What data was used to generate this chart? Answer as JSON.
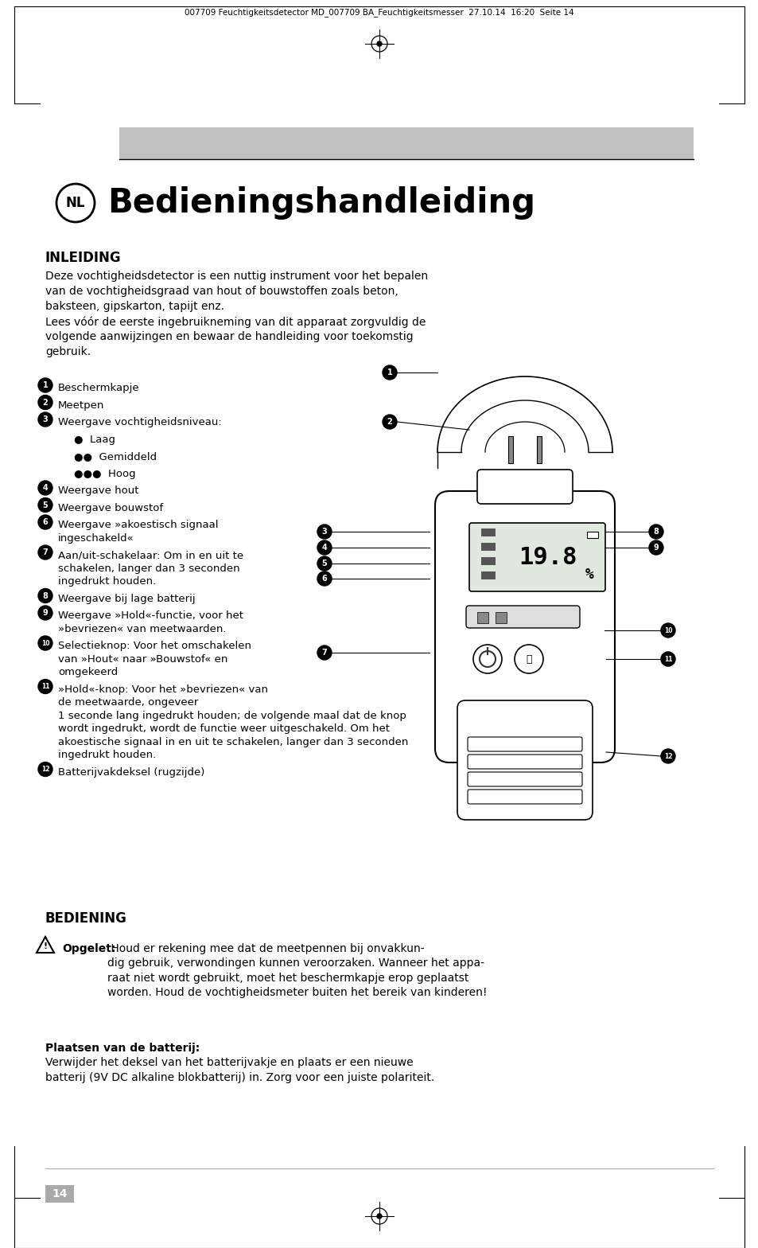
{
  "header_text": "007709 Feuchtigkeitsdetector MD_007709 BA_Feuchtigkeitsmesser  27.10.14  16:20  Seite 14",
  "title": "Bedieningshandleiding",
  "nl_label": "NL",
  "section1_title": "INLEIDING",
  "section1_body_lines": [
    "Deze vochtigheidsdetector is een nuttig instrument voor het bepalen",
    "van de vochtigheidsgraad van hout of bouwstoffen zoals beton,",
    "baksteen, gipskarton, tapijt enz.",
    "Lees vóór de eerste ingebruikneming van dit apparaat zorgvuldig de",
    "volgende aanwijzingen en bewaar de handleiding voor toekomstig",
    "gebruik."
  ],
  "items": [
    {
      "num": "1",
      "text": "Beschermkapje",
      "lines": 1,
      "indent": false
    },
    {
      "num": "2",
      "text": "Meetpen",
      "lines": 1,
      "indent": false
    },
    {
      "num": "3",
      "text": "Weergave vochtigheidsniveau:",
      "lines": 1,
      "indent": false
    },
    {
      "num": null,
      "text": "●  Laag",
      "lines": 1,
      "indent": true
    },
    {
      "num": null,
      "text": "●●  Gemiddeld",
      "lines": 1,
      "indent": true
    },
    {
      "num": null,
      "text": "●●●  Hoog",
      "lines": 1,
      "indent": true
    },
    {
      "num": "4",
      "text": "Weergave hout",
      "lines": 1,
      "indent": false
    },
    {
      "num": "5",
      "text": "Weergave bouwstof",
      "lines": 1,
      "indent": false
    },
    {
      "num": "6",
      "text": "Weergave »akoestisch signaal\ningeschakeld«",
      "lines": 2,
      "indent": false
    },
    {
      "num": "7",
      "text": "Aan/uit-schakelaar: Om in en uit te\nschakelen, langer dan 3 seconden\ningedrukt houden.",
      "lines": 3,
      "indent": false
    },
    {
      "num": "8",
      "text": "Weergave bij lage batterij",
      "lines": 1,
      "indent": false
    },
    {
      "num": "9",
      "text": "Weergave »Hold«-functie, voor het\n»bevriezen« van meetwaarden.",
      "lines": 2,
      "indent": false
    },
    {
      "num": "10",
      "text": "Selectieknop: Voor het omschakelen\nvan »Hout« naar »Bouwstof« en\nomgekeerd",
      "lines": 3,
      "indent": false
    },
    {
      "num": "11",
      "text": "»Hold«-knop: Voor het »bevriezen« van\nde meetwaarde, ongeveer\n1 seconde lang ingedrukt houden; de volgende maal dat de knop\nwordt ingedrukt, wordt de functie weer uitgeschakeld. Om het\nakoestische signaal in en uit te schakelen, langer dan 3 seconden\ningedrukt houden.",
      "lines": 6,
      "indent": false
    },
    {
      "num": "12",
      "text": "Batterijvakdeksel (rugzijde)",
      "lines": 1,
      "indent": false
    }
  ],
  "section2_title": "BEDIENING",
  "warning_bold": "Opgelet:",
  "warning_rest": " Houd er rekening mee dat de meetpennen bij onvakkun-\ndig gebruik, verwondingen kunnen veroorzaken. Wanneer het appa-\nraat niet wordt gebruikt, moet het beschermkapje erop geplaatst\nworden. Houd de vochtigheidsmeter buiten het bereik van kinderen!",
  "battery_title": "Plaatsen van de batterij:",
  "battery_body": "Verwijder het deksel van het batterijvakje en plaats er een nieuwe\nbatterij (9V DC alkaline blokbatterij) in. Zorg voor een juiste polariteit.",
  "page_number": "14",
  "bg_color": "#ffffff",
  "gray_bar": "#c0c0c0"
}
